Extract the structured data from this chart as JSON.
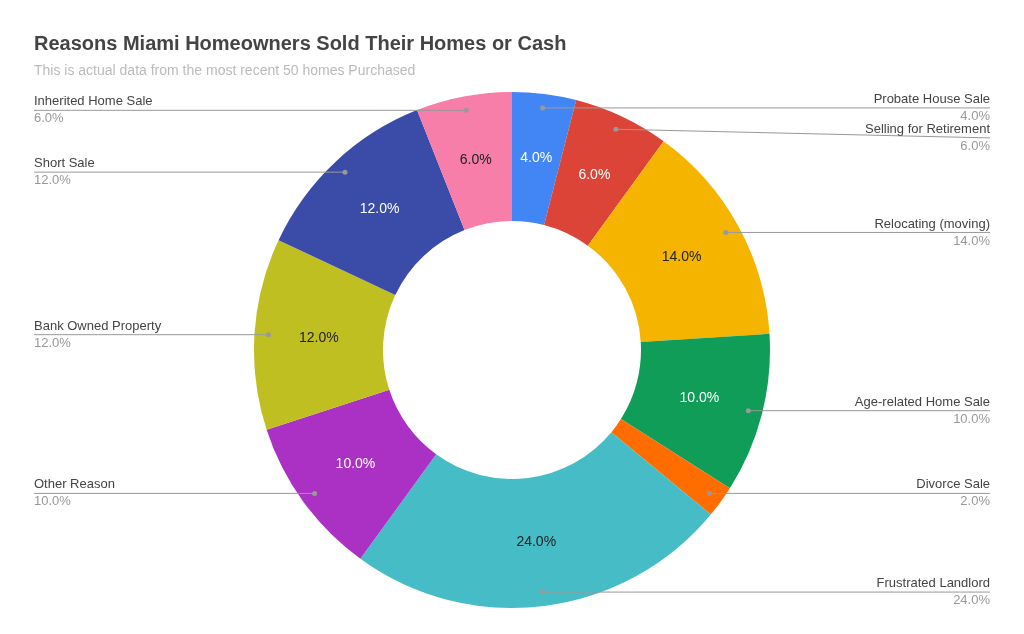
{
  "chart_data": {
    "type": "donut",
    "title": "Reasons Miami Homeowners Sold Their Homes or Cash",
    "subtitle": "This is actual data from the most recent 50 homes Purchased",
    "categories": [
      "Probate House Sale",
      "Selling for Retirement",
      "Relocating (moving)",
      "Age-related Home Sale",
      "Divorce Sale",
      "Frustrated Landlord",
      "Other Reason",
      "Bank Owned Property",
      "Short Sale",
      "Inherited Home Sale"
    ],
    "values": [
      4,
      6,
      14,
      10,
      2,
      24,
      10,
      12,
      12,
      6
    ],
    "colors": [
      "#4285f4",
      "#db4437",
      "#f4b400",
      "#0f9d58",
      "#ff6d00",
      "#46bdc6",
      "#ab30c4",
      "#c0bf22",
      "#3b4ba8",
      "#f67ea8"
    ],
    "value_labels": [
      "4.0%",
      "6.0%",
      "14.0%",
      "10.0%",
      "2.0%",
      "24.0%",
      "10.0%",
      "12.0%",
      "12.0%",
      "6.0%"
    ],
    "legend": false
  }
}
